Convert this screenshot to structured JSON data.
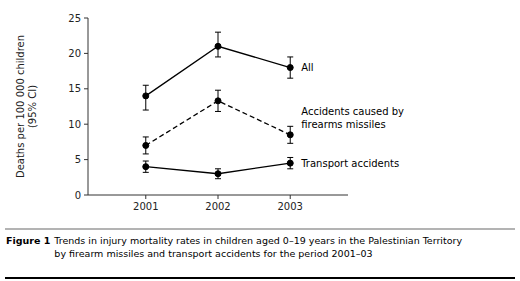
{
  "chart_data": {
    "type": "line",
    "ylabel": "Deaths per 100 000 children\n(95% CI)",
    "x": [
      2001,
      2002,
      2003
    ],
    "xlim": [
      2000.2,
      2003.8
    ],
    "xticks": [
      2001,
      2002,
      2003
    ],
    "ylim": [
      0,
      25
    ],
    "yticks": [
      0,
      5,
      10,
      15,
      20,
      25
    ],
    "color": "#000000",
    "series": [
      {
        "name": "All",
        "values": [
          14.0,
          21.0,
          18.0
        ],
        "yerr_lo": [
          2.0,
          1.5,
          1.5
        ],
        "yerr_hi": [
          1.5,
          2.0,
          1.5
        ],
        "line_style": "solid",
        "marker": "circle"
      },
      {
        "name": "Accidents caused by\nfirearms missiles",
        "values": [
          7.0,
          13.3,
          8.5
        ],
        "yerr_lo": [
          1.2,
          1.5,
          1.2
        ],
        "yerr_hi": [
          1.2,
          1.5,
          1.2
        ],
        "line_style": "dashed",
        "marker": "circle"
      },
      {
        "name": "Transport accidents",
        "values": [
          4.0,
          3.0,
          4.5
        ],
        "yerr_lo": [
          0.8,
          0.7,
          0.8
        ],
        "yerr_hi": [
          0.8,
          0.7,
          0.8
        ],
        "line_style": "solid",
        "marker": "circle"
      }
    ],
    "caption_label": "Figure 1",
    "caption": "Trends in injury mortality rates in children aged 0–19 years in the Palestinian Territory\nby firearm missiles and transport accidents for the period 2001–03"
  }
}
